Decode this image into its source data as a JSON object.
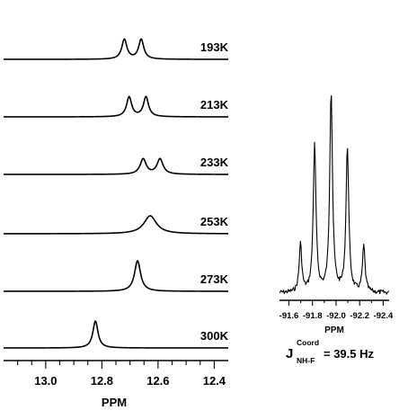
{
  "chart_data": [
    {
      "type": "line",
      "xlabel": "PPM",
      "xlim": [
        13.15,
        12.35
      ],
      "x_reversed": true,
      "xticks": [
        13.0,
        12.8,
        12.6,
        12.4
      ],
      "xtick_labels": [
        "13.0",
        "12.8",
        "12.6",
        "12.4"
      ],
      "series": [
        {
          "name": "193K",
          "peaks": [
            {
              "ppm": 12.72,
              "height": 1.0,
              "width": 0.011
            },
            {
              "ppm": 12.66,
              "height": 1.0,
              "width": 0.011
            }
          ]
        },
        {
          "name": "213K",
          "peaks": [
            {
              "ppm": 12.703,
              "height": 1.0,
              "width": 0.011
            },
            {
              "ppm": 12.643,
              "height": 1.0,
              "width": 0.011
            }
          ]
        },
        {
          "name": "233K",
          "peaks": [
            {
              "ppm": 12.653,
              "height": 1.0,
              "width": 0.013
            },
            {
              "ppm": 12.593,
              "height": 1.0,
              "width": 0.013
            }
          ]
        },
        {
          "name": "253K",
          "peaks": [
            {
              "ppm": 12.628,
              "height": 1.0,
              "width": 0.027
            }
          ]
        },
        {
          "name": "273K",
          "peaks": [
            {
              "ppm": 12.673,
              "height": 1.0,
              "width": 0.013
            }
          ]
        },
        {
          "name": "300K",
          "peaks": [
            {
              "ppm": 12.823,
              "height": 1.0,
              "width": 0.011
            }
          ]
        }
      ]
    },
    {
      "type": "line",
      "xlabel": "PPM",
      "xlim": [
        -91.52,
        -92.45
      ],
      "x_reversed": true,
      "xticks": [
        -91.6,
        -91.8,
        -92.0,
        -92.2,
        -92.4
      ],
      "xtick_labels": [
        "-91.6",
        "-91.8",
        "-92.0",
        "-92.2",
        "-92.4"
      ],
      "series": [
        {
          "name": "",
          "peaks": [
            {
              "ppm": -91.698,
              "height": 0.24,
              "width": 0.013
            },
            {
              "ppm": -91.818,
              "height": 0.73,
              "width": 0.014
            },
            {
              "ppm": -91.958,
              "height": 1.0,
              "width": 0.014
            },
            {
              "ppm": -92.096,
              "height": 0.72,
              "width": 0.014
            },
            {
              "ppm": -92.235,
              "height": 0.23,
              "width": 0.013
            }
          ]
        }
      ]
    }
  ],
  "annotation": {
    "j_symbol": "J",
    "j_superscript": "Coord",
    "j_subscript": "NH-F",
    "j_value": "=  39.5 Hz"
  }
}
